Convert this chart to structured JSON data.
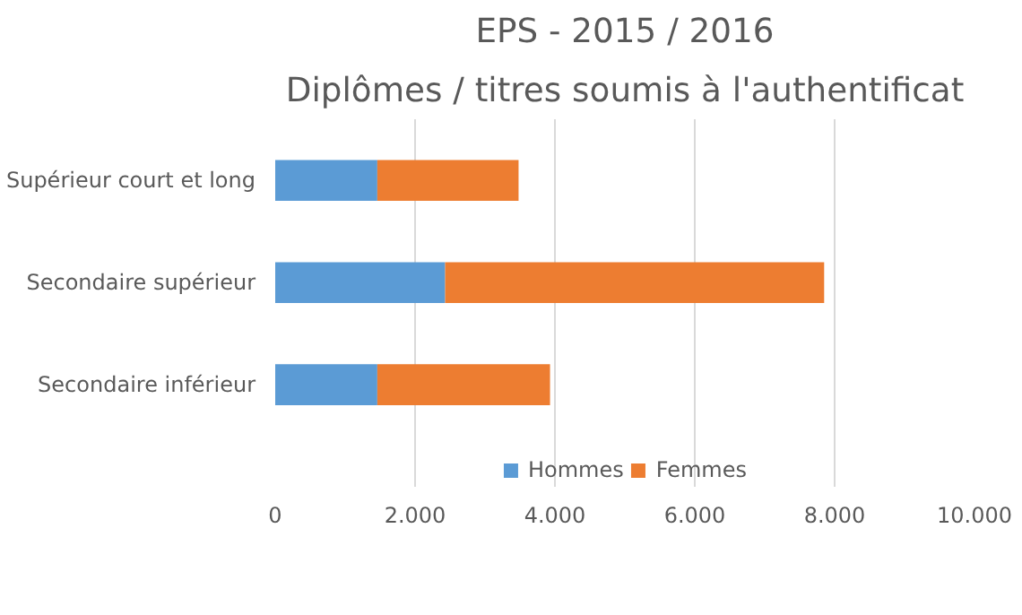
{
  "chart_data": {
    "type": "bar",
    "orientation": "horizontal",
    "stacked": true,
    "title": "EPS - 2015 / 2016",
    "subtitle": "Diplômes / titres soumis à l'authentificat",
    "categories": [
      "Supérieur court et long",
      "Secondaire supérieur",
      "Secondaire inférieur"
    ],
    "series": [
      {
        "name": "Hommes",
        "color": "#5b9bd5",
        "values": [
          1460,
          2430,
          1460
        ]
      },
      {
        "name": "Femmes",
        "color": "#ed7d31",
        "values": [
          2020,
          5420,
          2470
        ]
      }
    ],
    "xlim": [
      0,
      10000
    ],
    "xticks": [
      0,
      {
        "value": 2000,
        "label": "2.000"
      },
      {
        "value": 4000,
        "label": "4.000"
      },
      {
        "value": 6000,
        "label": "6.000"
      },
      {
        "value": 8000,
        "label": "8.000"
      },
      {
        "value": 10000,
        "label": "10.000"
      }
    ],
    "grid": "x",
    "legend": "bottom"
  }
}
